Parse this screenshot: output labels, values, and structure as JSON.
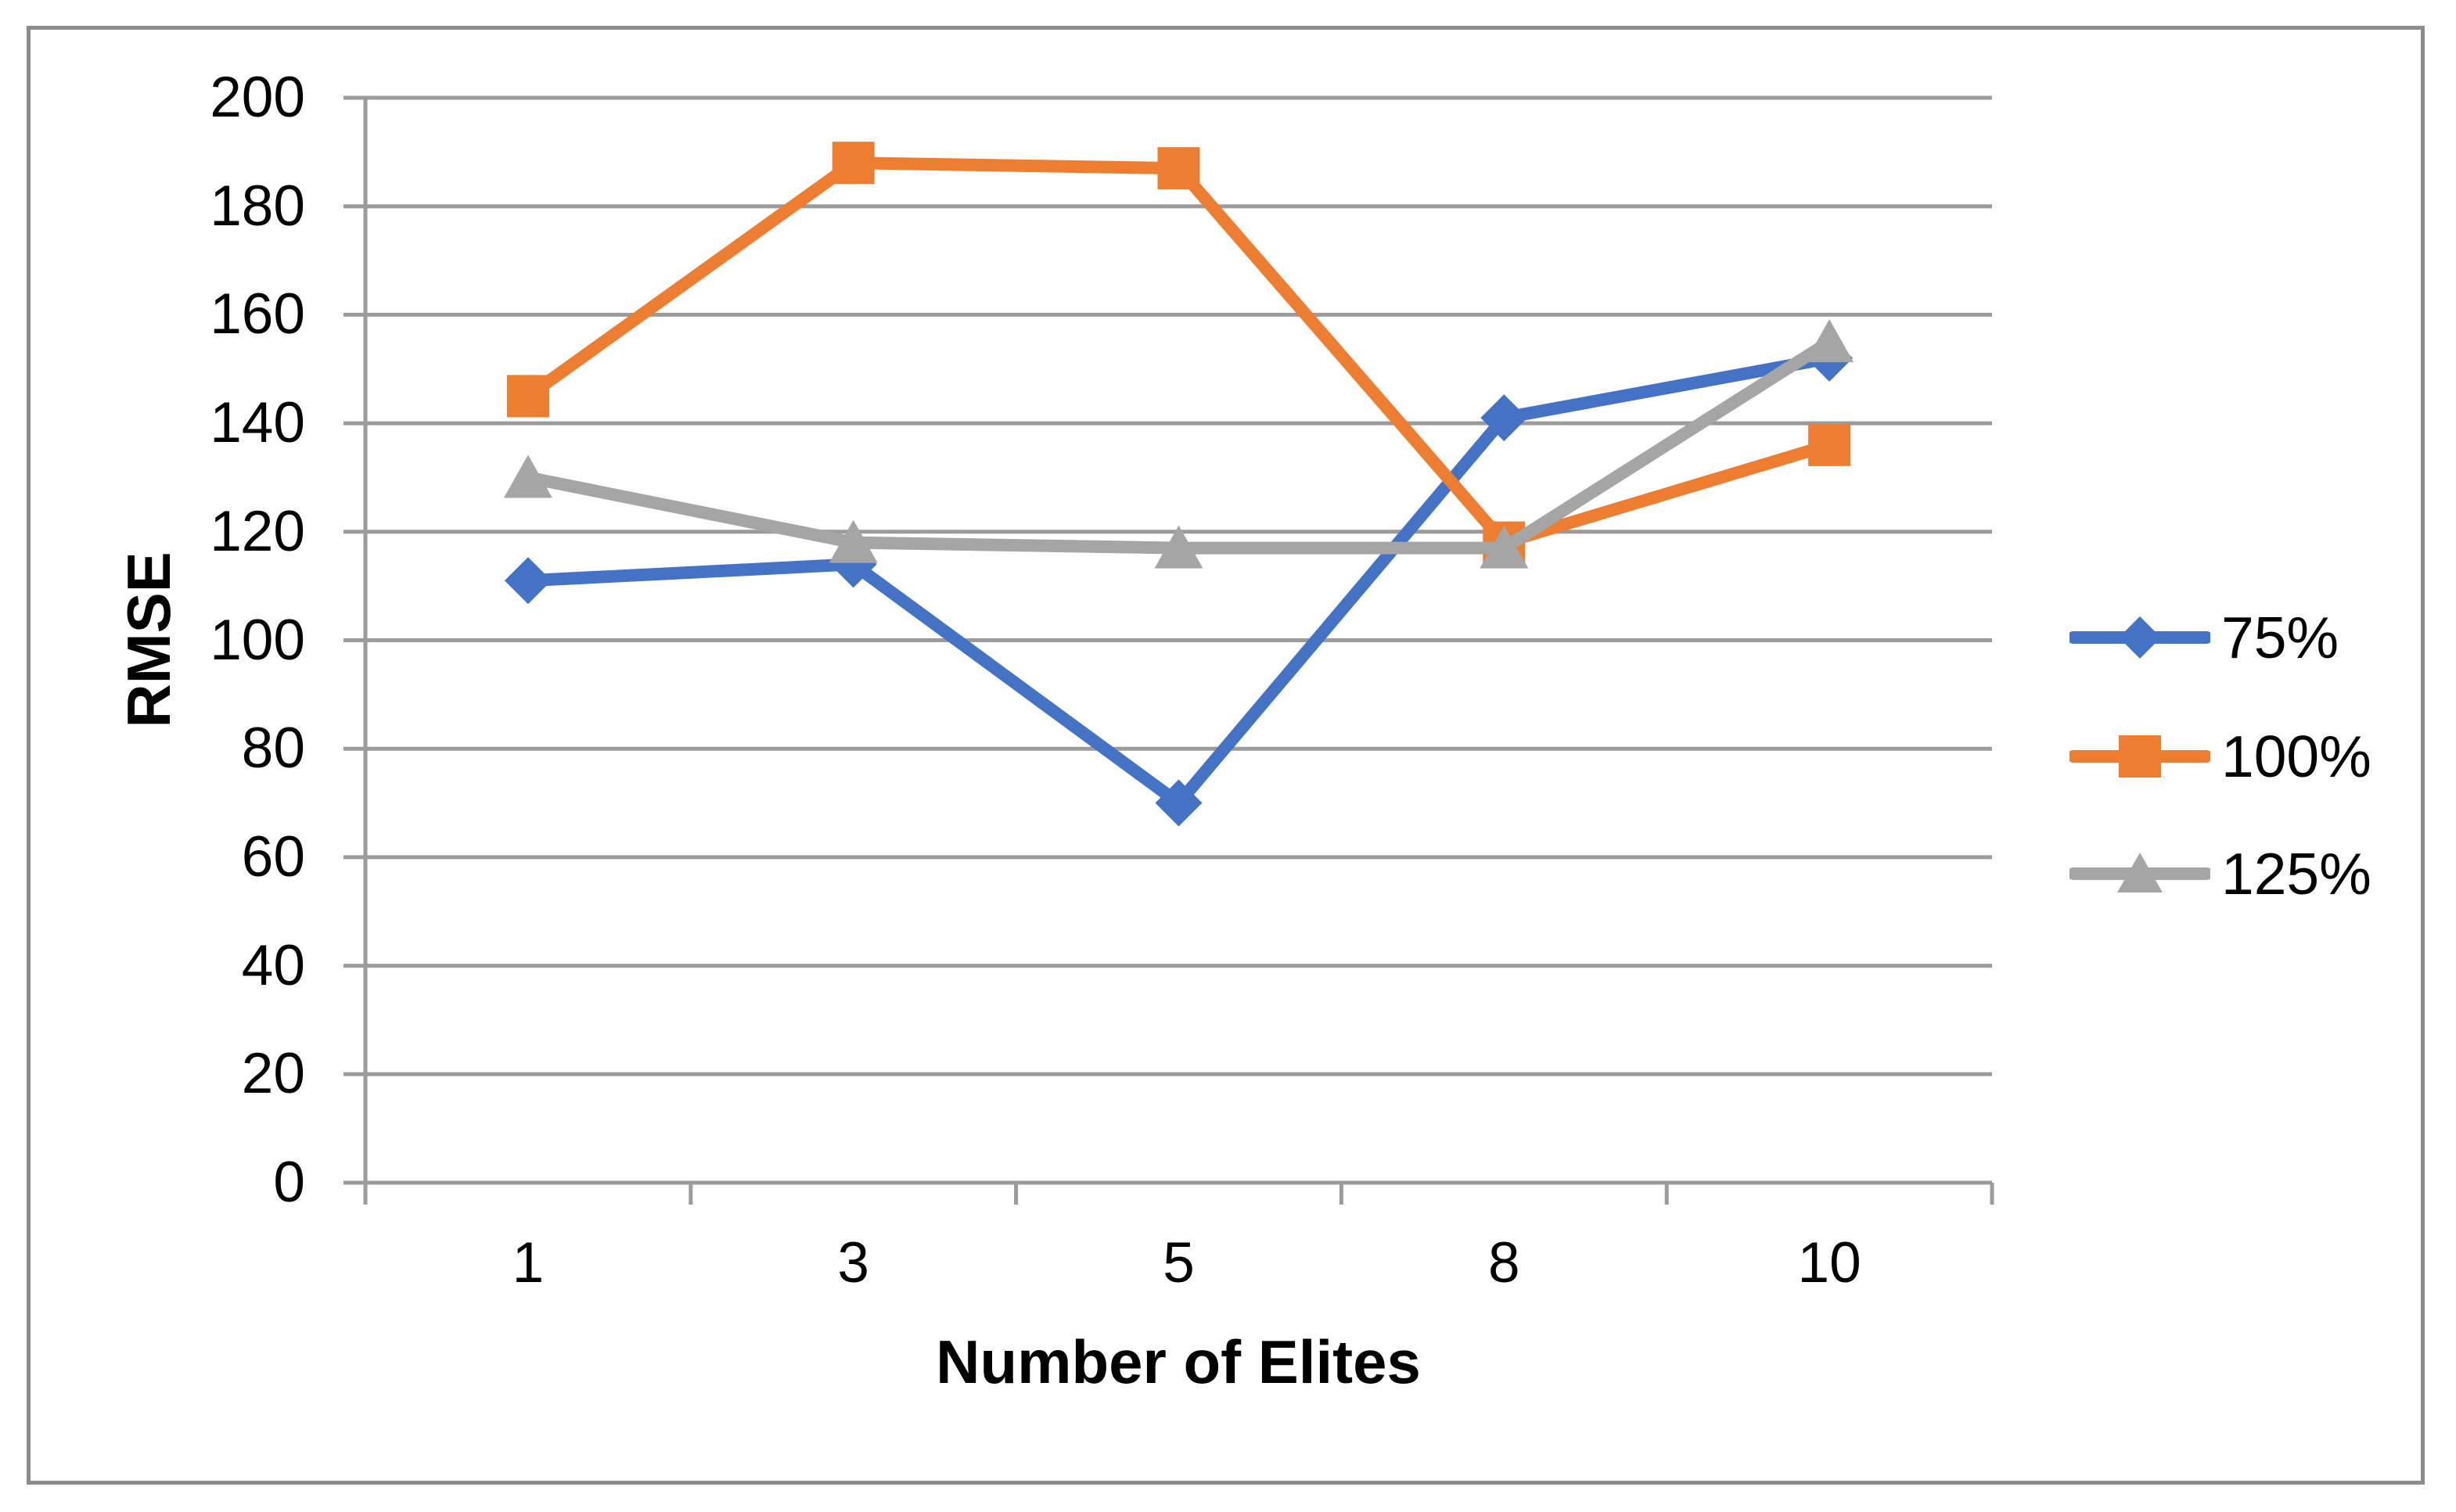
{
  "figure": {
    "background": "#ffffff",
    "border_color": "#8C8C8C"
  },
  "chart_data": {
    "type": "line",
    "title": "",
    "xlabel": "Number of Elites",
    "ylabel": "RMSE",
    "categories": [
      "1",
      "3",
      "5",
      "8",
      "10"
    ],
    "series": [
      {
        "name": "75%",
        "marker": "diamond",
        "color": "#4472C4",
        "values": [
          111,
          114,
          70,
          141,
          152
        ]
      },
      {
        "name": "100%",
        "marker": "square",
        "color": "#ED7D31",
        "values": [
          145,
          188,
          187,
          118,
          136
        ]
      },
      {
        "name": "125%",
        "marker": "triangle",
        "color": "#A5A5A5",
        "values": [
          130,
          118,
          117,
          117,
          155
        ]
      }
    ],
    "ylim": [
      0,
      200
    ],
    "y_tick_step": 20,
    "y_tick_labels": [
      "0",
      "20",
      "40",
      "60",
      "80",
      "100",
      "120",
      "140",
      "160",
      "180",
      "200"
    ],
    "grid": "horizontal",
    "gridline_color": "#9B9B9B",
    "axis_color": "#9B9B9B",
    "legend_position": "right"
  }
}
